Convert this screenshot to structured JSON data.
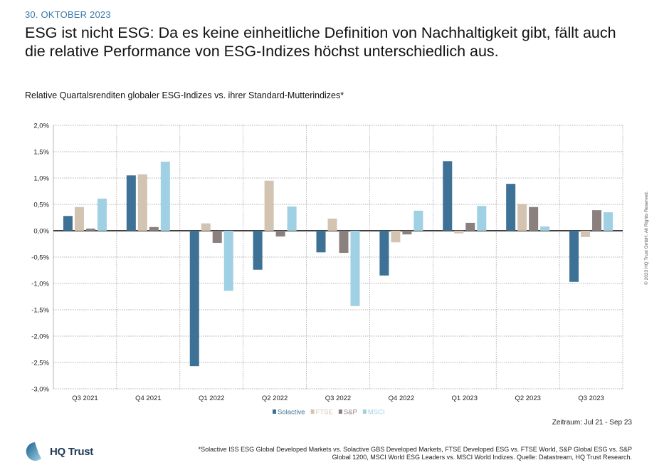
{
  "header": {
    "date": "30. OKTOBER 2023",
    "title": "ESG ist nicht ESG: Da es keine einheitliche Definition von Nachhaltigkeit gibt, fällt auch die relative Performance von ESG-Indizes höchst unterschiedlich aus."
  },
  "chart_data": {
    "type": "bar",
    "title": "Relative Quartalsrenditen globaler ESG-Indizes vs. ihrer Standard-Mutterindizes*",
    "categories": [
      "Q3 2021",
      "Q4 2021",
      "Q1 2022",
      "Q2 2022",
      "Q3 2022",
      "Q4 2022",
      "Q1 2023",
      "Q2 2023",
      "Q3 2023"
    ],
    "series": [
      {
        "name": "Solactive",
        "color": "#3d7196",
        "values": [
          0.28,
          1.05,
          -2.57,
          -0.74,
          -0.41,
          -0.85,
          1.32,
          0.89,
          -0.97
        ]
      },
      {
        "name": "FTSE",
        "color": "#d3c4b2",
        "values": [
          0.45,
          1.07,
          0.14,
          0.95,
          0.23,
          -0.22,
          -0.05,
          0.51,
          -0.12
        ]
      },
      {
        "name": "S&P",
        "color": "#8a807e",
        "values": [
          0.04,
          0.07,
          -0.23,
          -0.11,
          -0.42,
          -0.07,
          0.15,
          0.45,
          0.39
        ]
      },
      {
        "name": "MSCI",
        "color": "#9fd0e3",
        "values": [
          0.61,
          1.31,
          -1.14,
          0.46,
          -1.43,
          0.38,
          0.47,
          0.08,
          0.35
        ]
      }
    ],
    "yticks": [
      "2,0%",
      "1,5%",
      "1,0%",
      "0,5%",
      "0,0%",
      "-0,5%",
      "-1,0%",
      "-1,5%",
      "-2,0%",
      "-2,5%",
      "-3,0%"
    ],
    "ylim": [
      -3.0,
      2.0
    ],
    "unit": "%",
    "grid": true,
    "legend_placement": "bottom"
  },
  "zeitraum": "Zeitraum: Jul 21 - Sep 23",
  "copyright": "© 2023 HQ Trust GmbH. All Rights Reserved.",
  "logo": {
    "text": "HQ Trust"
  },
  "footnote": "*Solactive ISS ESG Global Developed Markets vs. Solactive GBS Developed Markets, FTSE Developed ESG vs. FTSE World, S&P Global ESG vs. S&P Global 1200, MSCI World ESG Leaders vs. MSCI World Indizes. Quelle: Datastream, HQ Trust Research."
}
